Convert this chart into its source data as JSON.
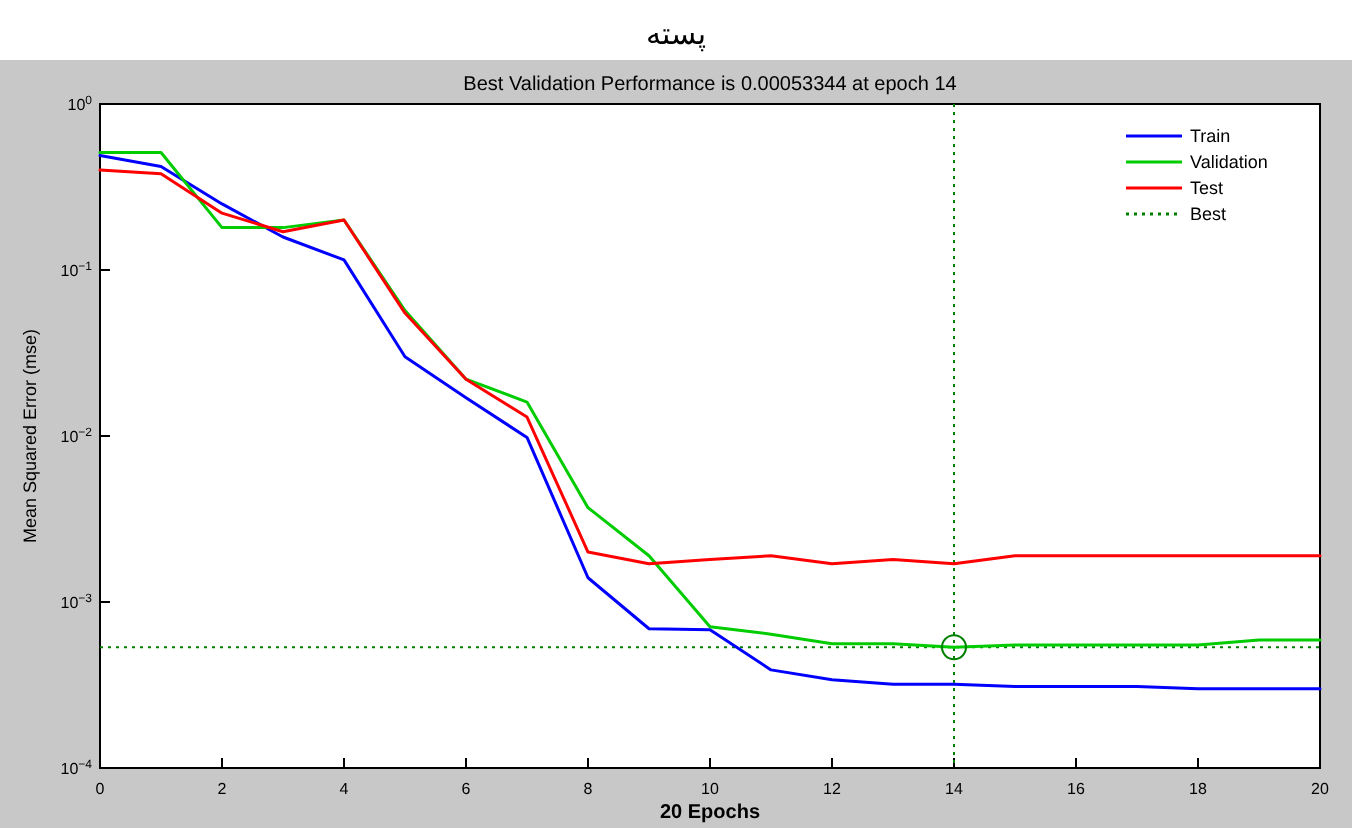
{
  "chart_data": {
    "type": "line",
    "title": "پسته",
    "subtitle": "Best Validation Performance is 0.00053344 at epoch 14",
    "xlabel": "20 Epochs",
    "ylabel": "Mean Squared Error (mse)",
    "x": [
      0,
      1,
      2,
      3,
      4,
      5,
      6,
      7,
      8,
      9,
      10,
      11,
      12,
      13,
      14,
      15,
      16,
      17,
      18,
      19,
      20
    ],
    "xlim": [
      0,
      20
    ],
    "xticks": [
      0,
      2,
      4,
      6,
      8,
      10,
      12,
      14,
      16,
      18,
      20
    ],
    "ylim": [
      0.0001,
      1
    ],
    "log": true,
    "yticks": [
      {
        "value": 0.0001,
        "label": "10$^{−4}$"
      },
      {
        "value": 0.001,
        "label": "10$^{−3}$"
      },
      {
        "value": 0.01,
        "label": "10$^{−2}$"
      },
      {
        "value": 0.1,
        "label": "10$^{−1}$"
      },
      {
        "value": 1,
        "label": "10$^{0}$"
      }
    ],
    "grid": false,
    "legend": "top right",
    "series": [
      {
        "name": "Train",
        "color": "#0000ff",
        "values": [
          0.49,
          0.42,
          0.25,
          0.158,
          0.115,
          0.03,
          0.017,
          0.0098,
          0.0014,
          0.00069,
          0.00068,
          0.00039,
          0.00034,
          0.00032,
          0.00032,
          0.00031,
          0.00031,
          0.00031,
          0.0003,
          0.0003,
          0.0003
        ]
      },
      {
        "name": "Validation",
        "color": "#00cc00",
        "values": [
          0.51,
          0.51,
          0.18,
          0.18,
          0.2,
          0.057,
          0.022,
          0.016,
          0.0037,
          0.0019,
          0.00071,
          0.00064,
          0.00056,
          0.00056,
          0.00053344,
          0.00055,
          0.00055,
          0.00055,
          0.00055,
          0.00059,
          0.00059
        ]
      },
      {
        "name": "Test",
        "color": "#ff0000",
        "values": [
          0.4,
          0.38,
          0.22,
          0.17,
          0.2,
          0.055,
          0.022,
          0.013,
          0.002,
          0.0017,
          0.0018,
          0.0019,
          0.0017,
          0.0018,
          0.0017,
          0.0019,
          0.0019,
          0.0019,
          0.0019,
          0.0019,
          0.0019
        ]
      },
      {
        "name": "Best",
        "color": "#008000",
        "x": [
          14
        ],
        "values": [
          0.00053344
        ],
        "line_style": "dotted",
        "marker": "circle"
      }
    ],
    "ref_lines": [
      {
        "axis": "x",
        "value": 14,
        "color": "#008000",
        "line_style": "dotted"
      },
      {
        "axis": "y",
        "value": 0.00053344,
        "color": "#008000",
        "line_style": "dotted"
      }
    ]
  }
}
